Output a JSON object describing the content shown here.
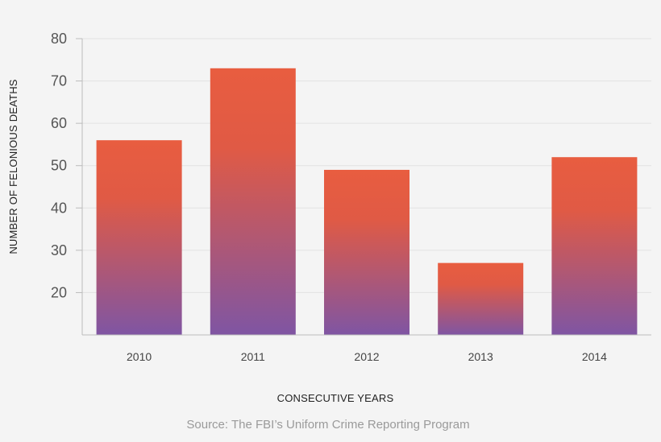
{
  "colors": {
    "bar_top": "#e85d40",
    "bar_bottom": "#7f55a3",
    "grid": "#e2e2e2",
    "axis": "#bbbbbb",
    "background": "#f4f4f4"
  },
  "chart_data": {
    "type": "bar",
    "categories": [
      "2010",
      "2011",
      "2012",
      "2013",
      "2014"
    ],
    "values": [
      56,
      73,
      49,
      27,
      52
    ],
    "xlabel": "CONSECUTIVE YEARS",
    "ylabel": "NUMBER OF FELONIOUS DEATHS",
    "ylim": [
      10,
      80
    ],
    "yticks": [
      20,
      30,
      40,
      50,
      60,
      70,
      80
    ],
    "grid": true,
    "legend": "none"
  },
  "footer": {
    "source": "Source: The FBI’s Uniform Crime Reporting Program"
  }
}
